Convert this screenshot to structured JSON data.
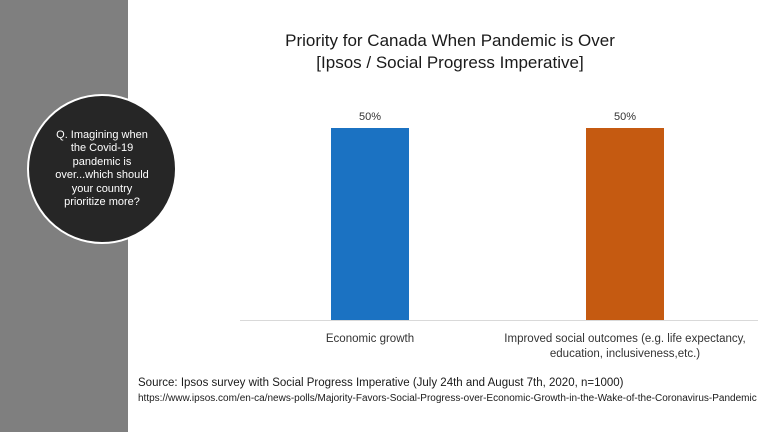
{
  "sidebar": {
    "question": "Q. Imagining when the Covid-19 pandemic is over...which should your country prioritize more?"
  },
  "colors": {
    "sidebar": "#7f7f7f",
    "circle": "#262626",
    "economic": "#1b72c2",
    "social": "#c55a11"
  },
  "chart_data": {
    "type": "bar",
    "title": [
      "Priority for Canada When Pandemic is Over",
      "[Ipsos / Social Progress Imperative]"
    ],
    "categories": [
      [
        "Economic growth"
      ],
      [
        "Improved social outcomes (e.g. life expectancy,",
        "education, inclusiveness,etc.)"
      ]
    ],
    "values": [
      50,
      50
    ],
    "value_labels": [
      "50%",
      "50%"
    ],
    "bar_colors": [
      "#1b72c2",
      "#c55a11"
    ],
    "ylim": [
      0,
      50
    ],
    "grid": false,
    "legend": "none",
    "xlabel": "",
    "ylabel": ""
  },
  "source": {
    "line1": "Source:  Ipsos survey with Social Progress Imperative  (July 24th and August 7th, 2020, n=1000)",
    "url": "https://www.ipsos.com/en-ca/news-polls/Majority-Favors-Social-Progress-over-Economic-Growth-in-the-Wake-of-the-Coronavirus-Pandemic"
  }
}
